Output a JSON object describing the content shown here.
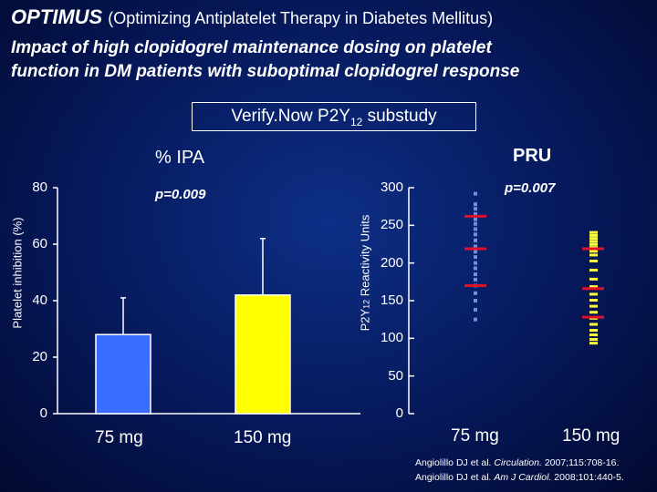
{
  "title": {
    "acronym": "OPTIMUS",
    "expansion": "(Optimizing Antiplatelet Therapy in Diabetes Mellitus)",
    "subtitle_line1": "Impact of high clopidogrel maintenance dosing on platelet",
    "subtitle_line2": "function in DM patients with suboptimal clopidogrel response"
  },
  "substudy": {
    "label": "Verify.Now P2Y",
    "sub": "12",
    "suffix": " substudy"
  },
  "colors": {
    "bar_75": "#3a6dff",
    "bar_150": "#ffff00",
    "median": "#e0102a",
    "points": "#6f8fe0",
    "points_150": "#ffff40"
  },
  "chart_data": [
    {
      "type": "bar",
      "title": "% IPA",
      "ylabel": "Platelet inhibition (%)",
      "ylabel_parts": {
        "pre": "Platelet inhibition (%)"
      },
      "ylim": [
        0,
        80
      ],
      "yticks": [
        0,
        20,
        40,
        60,
        80
      ],
      "categories": [
        "75 mg",
        "150 mg"
      ],
      "values": [
        28,
        42
      ],
      "error_upper": [
        41,
        62
      ],
      "annotation": "p=0.009"
    },
    {
      "type": "scatter",
      "title": "PRU",
      "ylabel": "P2Y12 Reactivity Units",
      "ylabel_parts": {
        "pre": "P2Y",
        "sub": "12",
        "post": " Reactivity Units"
      },
      "ylim": [
        0,
        300
      ],
      "yticks": [
        0,
        50,
        100,
        150,
        200,
        250,
        300
      ],
      "categories": [
        "75 mg",
        "150 mg"
      ],
      "series": [
        {
          "name": "75 mg",
          "values": [
            292,
            278,
            272,
            265,
            258,
            252,
            245,
            238,
            230,
            222,
            215,
            208,
            200,
            193,
            185,
            178,
            170,
            160,
            150,
            138,
            125
          ],
          "means": [
            262,
            219,
            170
          ]
        },
        {
          "name": "150 mg",
          "values": [
            240,
            236,
            232,
            228,
            224,
            220,
            215,
            210,
            202,
            190,
            178,
            168,
            158,
            150,
            142,
            134,
            126,
            118,
            110,
            104,
            98,
            93
          ],
          "means": [
            219,
            166,
            128
          ]
        }
      ],
      "annotation": "p=0.007"
    }
  ],
  "x_labels": [
    "75 mg",
    "150 mg",
    "75 mg",
    "150 mg"
  ],
  "citations": [
    {
      "pre": "Angiolillo DJ et al. ",
      "journal": "Circulation.",
      "post": " 2007;115:708-16."
    },
    {
      "pre": "Angiolillo DJ et al. ",
      "journal": "Am J Cardiol.",
      "post": " 2008;101:440-5."
    }
  ]
}
